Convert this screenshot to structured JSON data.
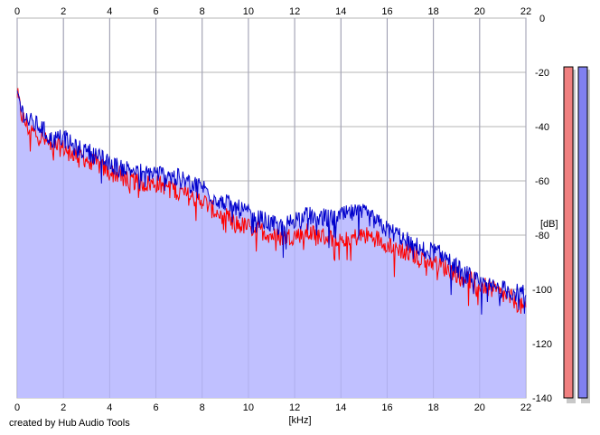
{
  "footer_text": "created by Hub Audio Tools",
  "chart_data": {
    "type": "area",
    "title": "",
    "xlabel": "[kHz]",
    "ylabel": "[dB]",
    "xlim": [
      0,
      22
    ],
    "ylim": [
      -140,
      0
    ],
    "x_ticks": [
      0,
      2,
      4,
      6,
      8,
      10,
      12,
      14,
      16,
      18,
      20,
      22
    ],
    "y_ticks": [
      0,
      -20,
      -40,
      -60,
      -80,
      -100,
      -120,
      -140
    ],
    "x_tick_labels": [
      "0",
      "2",
      "4",
      "6",
      "8",
      "10",
      "12",
      "14",
      "16",
      "18",
      "20",
      "22"
    ],
    "y_tick_labels": [
      "0",
      "-20",
      "-40",
      "-60",
      "-80",
      "-100",
      "-120",
      "-140"
    ],
    "grid": true,
    "fill_color": "#c0c0ff",
    "x": [
      0,
      0.2,
      0.5,
      1,
      1.5,
      2,
      2.5,
      3,
      3.5,
      4,
      4.5,
      5,
      5.5,
      6,
      6.5,
      7,
      7.5,
      8,
      8.5,
      9,
      9.5,
      10,
      10.5,
      11,
      11.5,
      12,
      12.5,
      13,
      13.5,
      14,
      14.5,
      15,
      15.5,
      16,
      16.5,
      17,
      17.5,
      18,
      18.5,
      19,
      19.5,
      20,
      20.5,
      21,
      21.5,
      22
    ],
    "series": [
      {
        "color": "#ff0000",
        "values": [
          -28,
          -36,
          -41,
          -44,
          -47,
          -48,
          -50,
          -52,
          -54,
          -57,
          -58,
          -60,
          -61,
          -61,
          -62,
          -64,
          -66,
          -67,
          -71,
          -73,
          -76,
          -77,
          -78,
          -80,
          -81,
          -80,
          -79,
          -80,
          -81,
          -81,
          -81,
          -80,
          -81,
          -83,
          -85,
          -87,
          -88,
          -90,
          -92,
          -94,
          -96,
          -98,
          -100,
          -102,
          -104,
          -108
        ]
      },
      {
        "color": "#0000cc",
        "values": [
          -27,
          -34,
          -38,
          -40,
          -45,
          -44,
          -48,
          -49,
          -51,
          -54,
          -55,
          -56,
          -57,
          -57,
          -58,
          -59,
          -61,
          -62,
          -66,
          -68,
          -70,
          -72,
          -74,
          -76,
          -77,
          -74,
          -73,
          -73,
          -74,
          -73,
          -72,
          -72,
          -75,
          -78,
          -80,
          -83,
          -85,
          -86,
          -88,
          -92,
          -95,
          -98,
          -99,
          -100,
          -101,
          -102
        ]
      }
    ],
    "level_meters": [
      {
        "color": "#f08080",
        "value": -18
      },
      {
        "color": "#8080f0",
        "value": -18
      }
    ]
  }
}
